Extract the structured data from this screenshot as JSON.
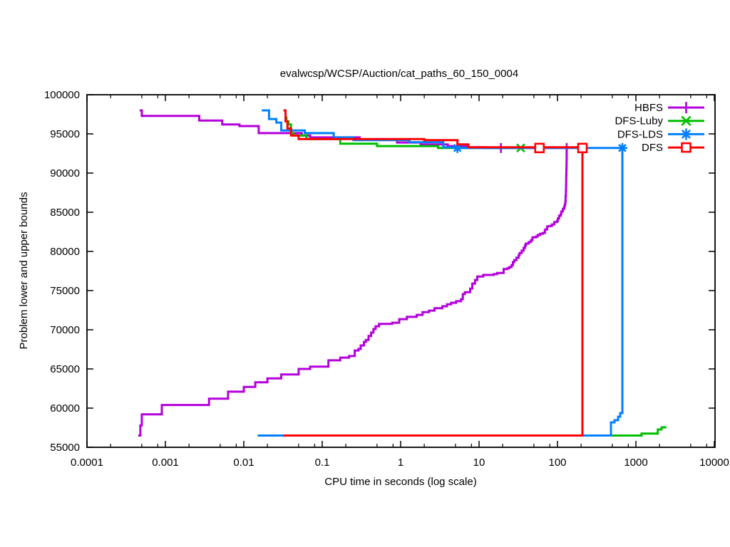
{
  "chart_data": {
    "type": "line",
    "title": "evalwcsp/WCSP/Auction/cat_paths_60_150_0004",
    "xlabel": "CPU time in seconds (log scale)",
    "ylabel": "Problem lower and upper bounds",
    "x_scale": "log",
    "xlim": [
      0.0001,
      10000
    ],
    "ylim": [
      55000,
      100000
    ],
    "grid": false,
    "legend_position": "top-right-inside",
    "legend_border": false,
    "frame_color": "#000000",
    "background_color": "#ffffff",
    "xticks": [
      {
        "value": 0.0001,
        "label": "0.0001"
      },
      {
        "value": 0.001,
        "label": "0.001"
      },
      {
        "value": 0.01,
        "label": "0.01"
      },
      {
        "value": 0.1,
        "label": "0.1"
      },
      {
        "value": 1,
        "label": "1"
      },
      {
        "value": 10,
        "label": "10"
      },
      {
        "value": 100,
        "label": "100"
      },
      {
        "value": 1000,
        "label": "1000"
      },
      {
        "value": 10000,
        "label": "10000"
      }
    ],
    "x_minor_multipliers": [
      2,
      5,
      8
    ],
    "yticks": [
      {
        "value": 55000,
        "label": "55000"
      },
      {
        "value": 60000,
        "label": "60000"
      },
      {
        "value": 65000,
        "label": "65000"
      },
      {
        "value": 70000,
        "label": "70000"
      },
      {
        "value": 75000,
        "label": "75000"
      },
      {
        "value": 80000,
        "label": "80000"
      },
      {
        "value": 85000,
        "label": "85000"
      },
      {
        "value": 90000,
        "label": "90000"
      },
      {
        "value": 95000,
        "label": "95000"
      },
      {
        "value": 100000,
        "label": "100000"
      }
    ],
    "series": [
      {
        "name": "HBFS",
        "color": "#b400dc",
        "marker": "plus",
        "upper": [
          [
            0.00047,
            98000
          ],
          [
            0.0005,
            97300
          ],
          [
            0.0027,
            96700
          ],
          [
            0.0053,
            96200
          ],
          [
            0.0088,
            96000
          ],
          [
            0.0155,
            95100
          ],
          [
            0.055,
            94800
          ],
          [
            0.07,
            94550
          ],
          [
            0.3,
            94250
          ],
          [
            0.9,
            93900
          ],
          [
            1.8,
            93650
          ],
          [
            4,
            93450
          ],
          [
            7,
            93300
          ],
          [
            12,
            93200
          ],
          [
            131,
            93200
          ]
        ],
        "lower": [
          [
            0.00045,
            56500
          ],
          [
            0.00048,
            57800
          ],
          [
            0.0005,
            59200
          ],
          [
            0.0009,
            60400
          ],
          [
            0.0036,
            61200
          ],
          [
            0.0063,
            62100
          ],
          [
            0.01,
            62700
          ],
          [
            0.014,
            63300
          ],
          [
            0.02,
            63800
          ],
          [
            0.03,
            64300
          ],
          [
            0.05,
            65000
          ],
          [
            0.07,
            65300
          ],
          [
            0.12,
            66100
          ],
          [
            0.17,
            66450
          ],
          [
            0.22,
            66650
          ],
          [
            0.26,
            67350
          ],
          [
            0.29,
            67550
          ],
          [
            0.31,
            68000
          ],
          [
            0.34,
            68450
          ],
          [
            0.36,
            68700
          ],
          [
            0.39,
            69200
          ],
          [
            0.42,
            69650
          ],
          [
            0.45,
            70100
          ],
          [
            0.48,
            70450
          ],
          [
            0.53,
            70750
          ],
          [
            0.78,
            70900
          ],
          [
            0.96,
            71350
          ],
          [
            1.2,
            71650
          ],
          [
            1.6,
            71900
          ],
          [
            1.9,
            72250
          ],
          [
            2.3,
            72450
          ],
          [
            2.7,
            72750
          ],
          [
            3.4,
            73000
          ],
          [
            3.9,
            73250
          ],
          [
            4.4,
            73450
          ],
          [
            5.1,
            73650
          ],
          [
            5.9,
            73900
          ],
          [
            6.2,
            74550
          ],
          [
            6.6,
            74800
          ],
          [
            7.7,
            75250
          ],
          [
            8.2,
            75900
          ],
          [
            8.9,
            76350
          ],
          [
            9.5,
            76800
          ],
          [
            11.3,
            77000
          ],
          [
            15.4,
            77100
          ],
          [
            17,
            77250
          ],
          [
            20.6,
            77750
          ],
          [
            23,
            77850
          ],
          [
            24.3,
            78000
          ],
          [
            26,
            78250
          ],
          [
            27,
            78650
          ],
          [
            28.2,
            78900
          ],
          [
            30,
            79200
          ],
          [
            32,
            79550
          ],
          [
            33,
            79800
          ],
          [
            35,
            80100
          ],
          [
            37,
            80450
          ],
          [
            38.5,
            80750
          ],
          [
            39.5,
            81000
          ],
          [
            43,
            81200
          ],
          [
            46,
            81450
          ],
          [
            48,
            81800
          ],
          [
            53,
            81900
          ],
          [
            56,
            82100
          ],
          [
            60,
            82250
          ],
          [
            65,
            82350
          ],
          [
            69,
            82750
          ],
          [
            72,
            82850
          ],
          [
            74,
            83200
          ],
          [
            80,
            83250
          ],
          [
            85,
            83450
          ],
          [
            91,
            83750
          ],
          [
            99,
            83900
          ],
          [
            101,
            84200
          ],
          [
            105,
            84550
          ],
          [
            110,
            84800
          ],
          [
            112,
            85100
          ],
          [
            117,
            85450
          ],
          [
            122,
            85750
          ],
          [
            124,
            86000
          ],
          [
            126,
            86350
          ],
          [
            127,
            87100
          ],
          [
            128,
            87750
          ],
          [
            128.5,
            88450
          ],
          [
            129,
            89200
          ],
          [
            129.5,
            89800
          ],
          [
            130,
            90550
          ],
          [
            130.4,
            91200
          ],
          [
            130.7,
            91750
          ],
          [
            130.9,
            92350
          ],
          [
            131,
            93200
          ]
        ],
        "marker_points": [
          [
            19,
            93200
          ],
          [
            131,
            93200
          ]
        ]
      },
      {
        "name": "DFS-Luby",
        "color": "#00be00",
        "marker": "cross",
        "upper": [
          [
            0.032,
            98000
          ],
          [
            0.034,
            97100
          ],
          [
            0.035,
            96600
          ],
          [
            0.037,
            96200
          ],
          [
            0.04,
            95100
          ],
          [
            0.043,
            94800
          ],
          [
            0.063,
            94350
          ],
          [
            0.17,
            93750
          ],
          [
            0.5,
            93450
          ],
          [
            3,
            93200
          ],
          [
            34,
            93200
          ]
        ],
        "lower": [
          [
            0.032,
            56500
          ],
          [
            1180,
            56750
          ],
          [
            1900,
            57270
          ],
          [
            2130,
            57550
          ],
          [
            2450,
            57550
          ]
        ],
        "marker_points": [
          [
            34,
            93200
          ]
        ]
      },
      {
        "name": "DFS-LDS",
        "color": "#0080ff",
        "marker": "asterisk",
        "upper": [
          [
            0.017,
            98000
          ],
          [
            0.021,
            96900
          ],
          [
            0.026,
            96450
          ],
          [
            0.03,
            95450
          ],
          [
            0.06,
            95100
          ],
          [
            0.14,
            94550
          ],
          [
            0.25,
            94200
          ],
          [
            1.3,
            93950
          ],
          [
            3.5,
            93300
          ],
          [
            5.3,
            93200
          ],
          [
            672,
            93200
          ]
        ],
        "lower": [
          [
            0.015,
            56500
          ],
          [
            481,
            58180
          ],
          [
            534,
            58450
          ],
          [
            593,
            58900
          ],
          [
            631,
            59360
          ],
          [
            672,
            93200
          ]
        ],
        "marker_points": [
          [
            5.3,
            93200
          ],
          [
            672,
            93200
          ]
        ]
      },
      {
        "name": "DFS",
        "color": "#ff0000",
        "marker": "square",
        "upper": [
          [
            0.032,
            98000
          ],
          [
            0.034,
            96600
          ],
          [
            0.036,
            95700
          ],
          [
            0.04,
            94800
          ],
          [
            0.05,
            94350
          ],
          [
            2,
            94200
          ],
          [
            5.3,
            93650
          ],
          [
            7.3,
            93300
          ],
          [
            208,
            93200
          ]
        ],
        "lower": [
          [
            0.032,
            56500
          ],
          [
            208,
            93200
          ]
        ],
        "marker_points": [
          [
            59,
            93200
          ],
          [
            208,
            93200
          ]
        ]
      }
    ]
  }
}
